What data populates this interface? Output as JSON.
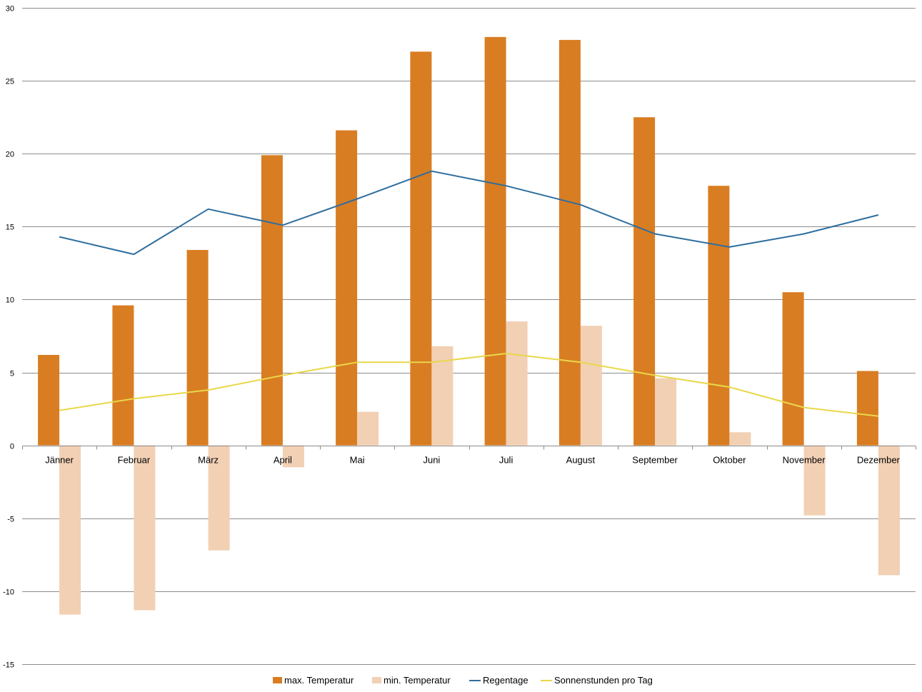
{
  "chart_data": {
    "type": "bar",
    "categories": [
      "Jänner",
      "Februar",
      "März",
      "April",
      "Mai",
      "Juni",
      "Juli",
      "August",
      "September",
      "Oktober",
      "November",
      "Dezember"
    ],
    "series": [
      {
        "name": "max. Temperatur",
        "kind": "bar",
        "color": "#D97D22",
        "values": [
          6.2,
          9.6,
          13.4,
          19.9,
          21.6,
          27.0,
          28.0,
          27.8,
          22.5,
          17.8,
          10.5,
          5.1
        ]
      },
      {
        "name": "min. Temperatur",
        "kind": "bar",
        "color": "#F2D0B4",
        "values": [
          -11.6,
          -11.3,
          -7.2,
          -1.5,
          2.3,
          6.8,
          8.5,
          8.2,
          4.6,
          0.9,
          -4.8,
          -8.9
        ]
      },
      {
        "name": "Regentage",
        "kind": "line",
        "color": "#2E6E9E",
        "values": [
          14.3,
          13.1,
          16.2,
          15.1,
          16.9,
          18.8,
          17.8,
          16.5,
          14.5,
          13.6,
          14.5,
          15.8
        ]
      },
      {
        "name": "Sonnenstunden pro Tag",
        "kind": "line",
        "color": "#E8D84A",
        "values": [
          2.4,
          3.2,
          3.8,
          4.8,
          5.7,
          5.7,
          6.3,
          5.7,
          4.8,
          4.0,
          2.6,
          2.0
        ]
      }
    ],
    "y_ticks": [
      "30",
      "25",
      "20",
      "15",
      "10",
      "5",
      "0",
      "-5",
      "-10",
      "-15"
    ],
    "ylim": [
      -15,
      30
    ],
    "grid": true,
    "legend_position": "bottom-center",
    "title": "",
    "xlabel": "",
    "ylabel": ""
  }
}
